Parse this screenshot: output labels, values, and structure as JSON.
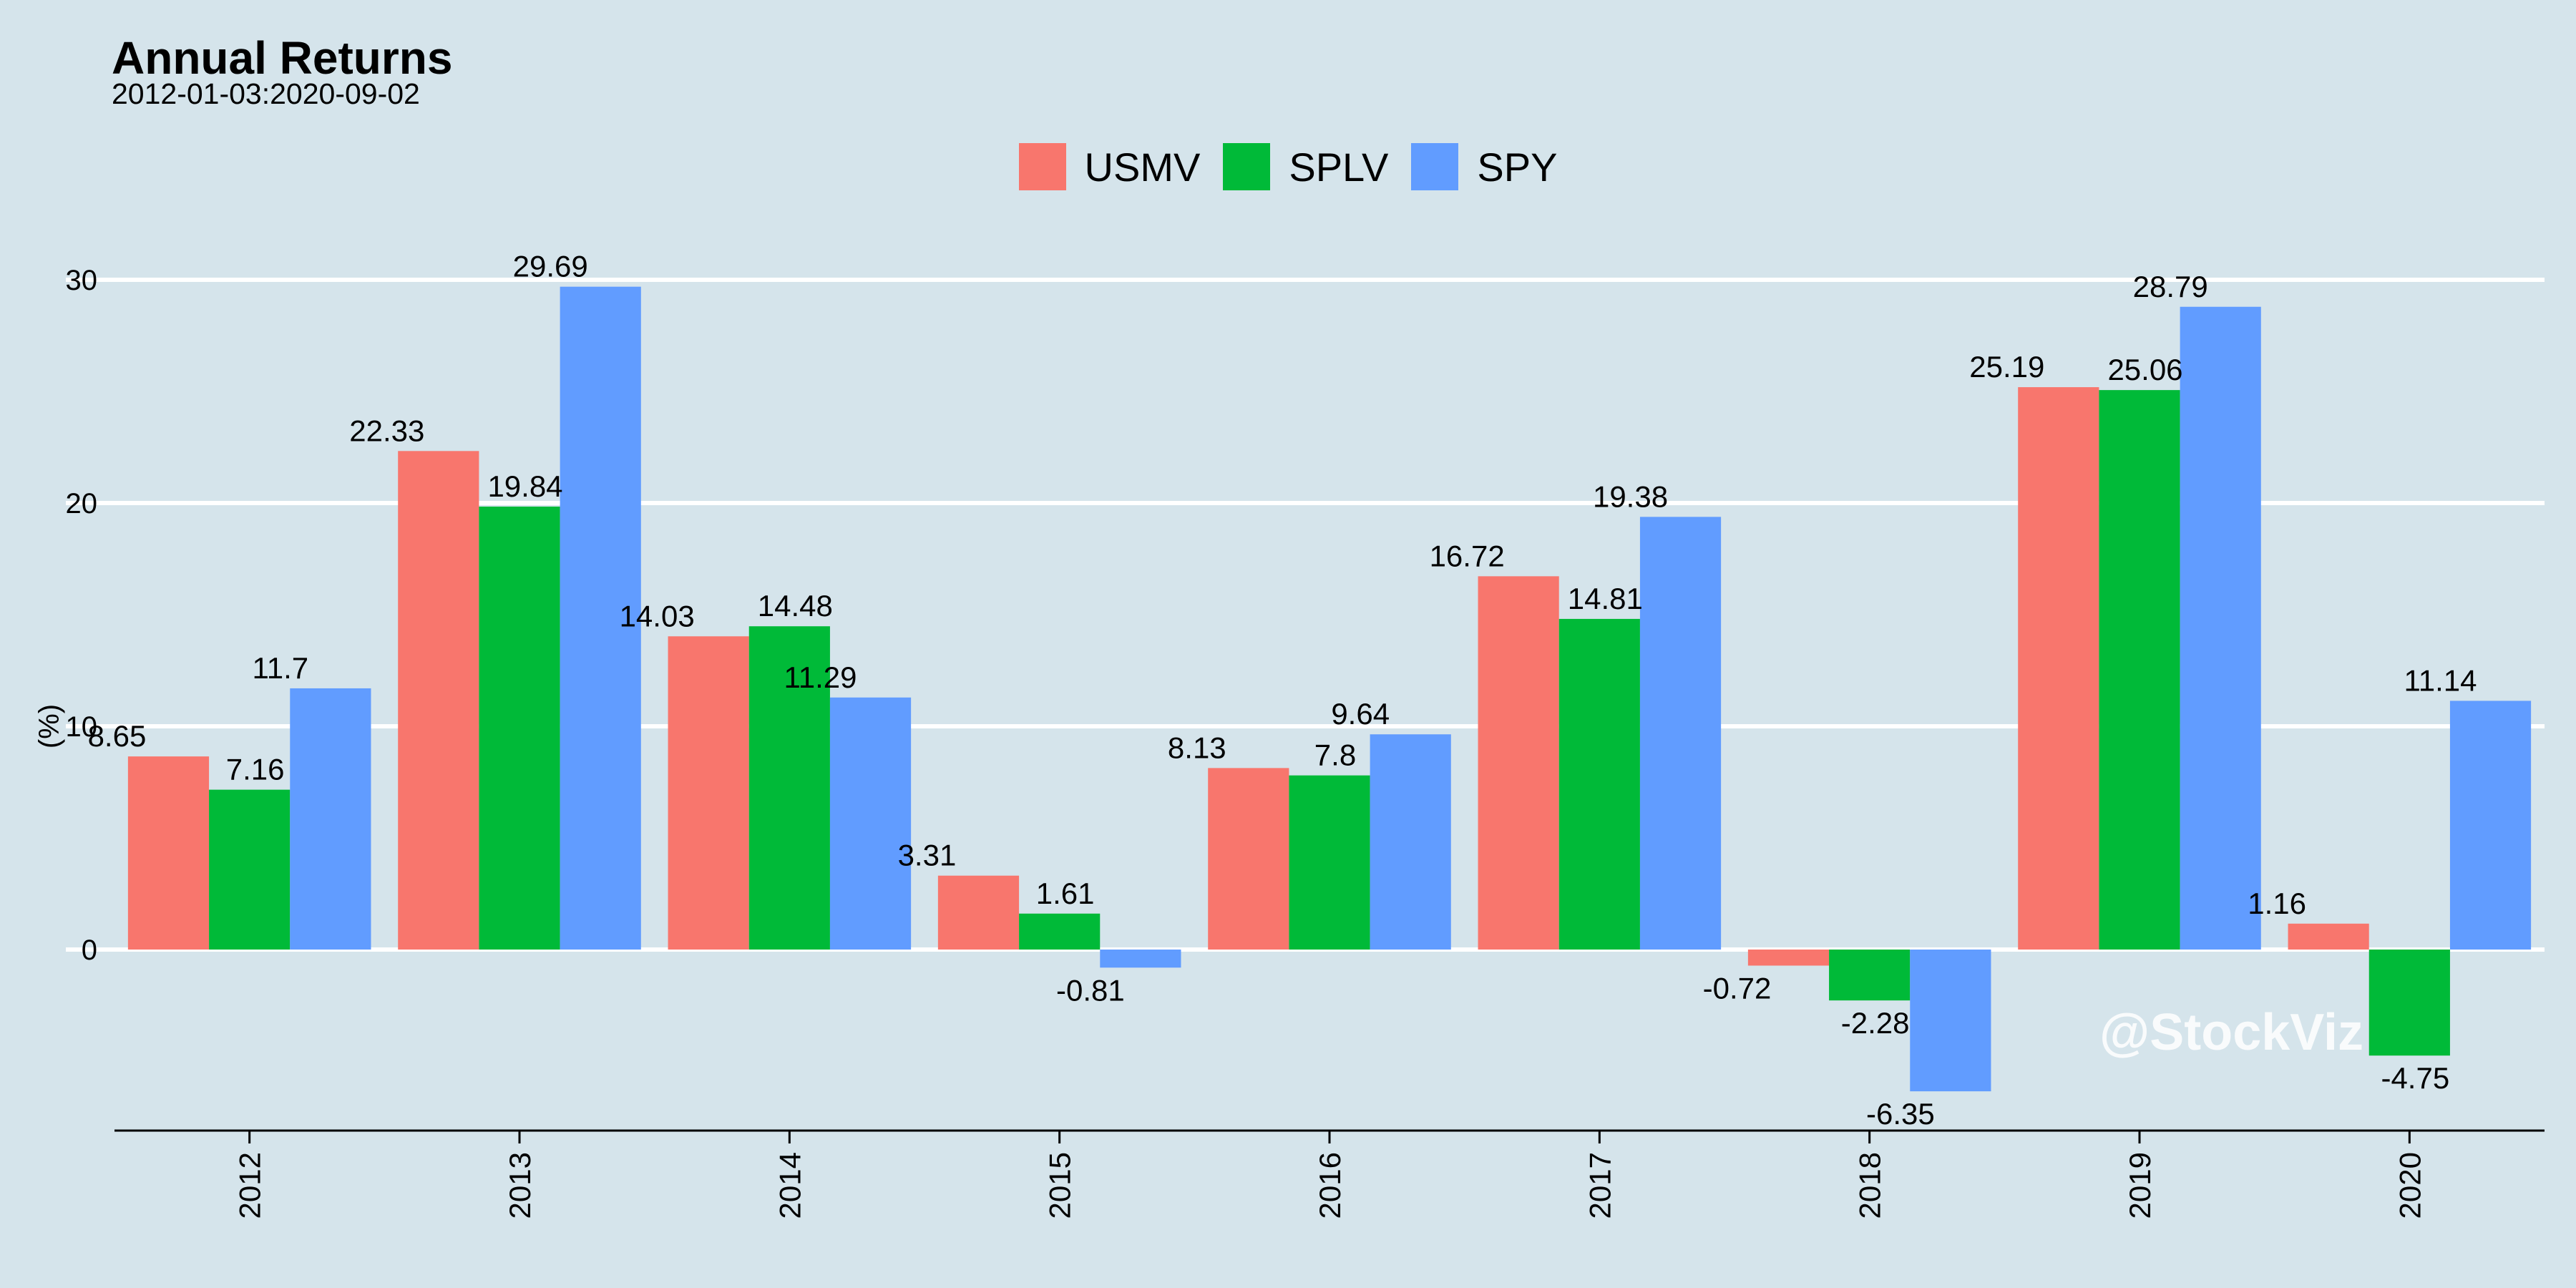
{
  "chart_data": {
    "type": "bar",
    "title": "Annual Returns",
    "subtitle": "2012-01-03:2020-09-02",
    "ylabel": "(%)",
    "xlabel": "",
    "ylim": [
      -8.1,
      30.3
    ],
    "yticks": [
      0,
      10,
      20,
      30
    ],
    "categories": [
      "2012",
      "2013",
      "2014",
      "2015",
      "2016",
      "2017",
      "2018",
      "2019",
      "2020"
    ],
    "series": [
      {
        "name": "USMV",
        "color": "#f8766d",
        "values": [
          8.65,
          22.33,
          14.03,
          3.31,
          8.13,
          16.72,
          -0.72,
          25.19,
          1.16
        ]
      },
      {
        "name": "SPLV",
        "color": "#00ba38",
        "values": [
          7.16,
          19.84,
          14.48,
          1.61,
          7.8,
          14.81,
          -2.28,
          25.06,
          -4.75
        ]
      },
      {
        "name": "SPY",
        "color": "#619cff",
        "values": [
          11.7,
          29.69,
          11.29,
          -0.81,
          9.64,
          19.38,
          -6.35,
          28.79,
          11.14
        ]
      }
    ],
    "grid": true,
    "legend_position": "top"
  },
  "watermark": "@StockViz"
}
